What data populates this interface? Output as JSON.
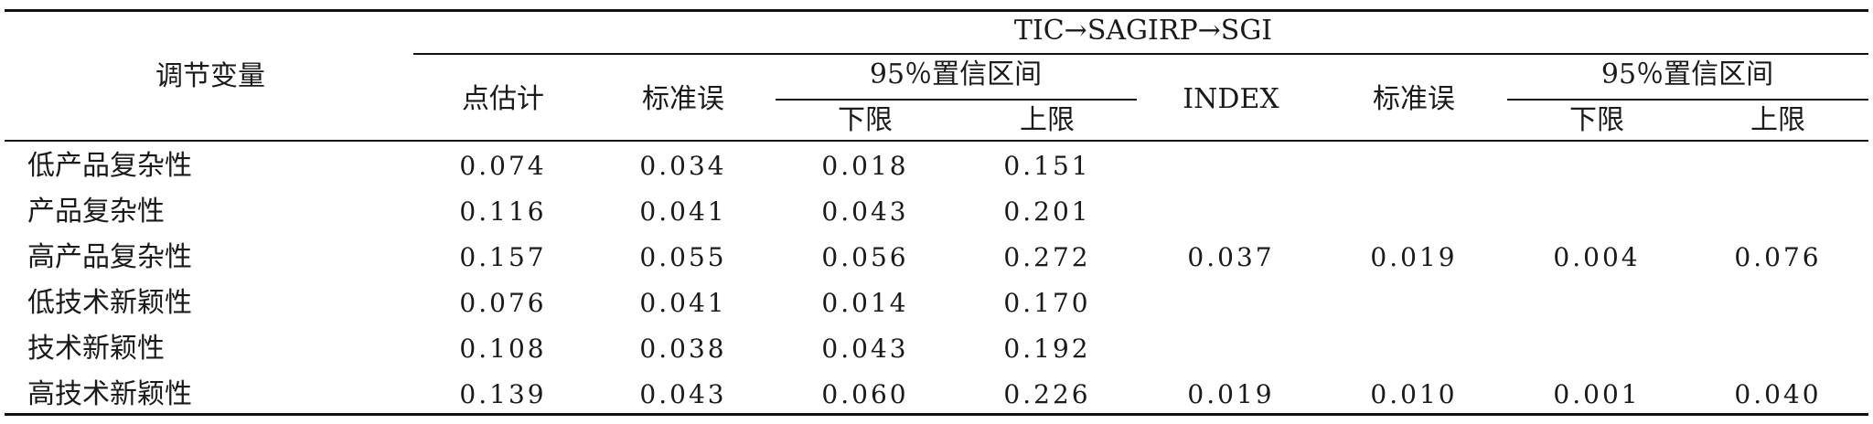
{
  "table": {
    "header": {
      "moderator": "调节变量",
      "path": "TIC→SAGIRP→SGI",
      "point_estimate": "点估计",
      "std_error": "标准误",
      "ci": "95％置信区间",
      "lower": "下限",
      "upper": "上限",
      "index": "INDEX",
      "std_error2": "标准误",
      "ci2": "95％置信区间",
      "lower2": "下限",
      "upper2": "上限"
    },
    "rows": [
      {
        "label": "低产品复杂性",
        "v": [
          "0.074",
          "0.034",
          "0.018",
          "0.151"
        ]
      },
      {
        "label": "产品复杂性",
        "v": [
          "0.116",
          "0.041",
          "0.043",
          "0.201"
        ]
      },
      {
        "label": "高产品复杂性",
        "v": [
          "0.157",
          "0.055",
          "0.056",
          "0.272"
        ]
      },
      {
        "label": "低技术新颖性",
        "v": [
          "0.076",
          "0.041",
          "0.014",
          "0.170"
        ]
      },
      {
        "label": "技术新颖性",
        "v": [
          "0.108",
          "0.038",
          "0.043",
          "0.192"
        ]
      },
      {
        "label": "高技术新颖性",
        "v": [
          "0.139",
          "0.043",
          "0.060",
          "0.226"
        ]
      }
    ],
    "index_rows": [
      {
        "index": "0.037",
        "std_error": "0.019",
        "lower": "0.004",
        "upper": "0.076"
      },
      {
        "index": "0.019",
        "std_error": "0.010",
        "lower": "0.001",
        "upper": "0.040"
      }
    ]
  }
}
